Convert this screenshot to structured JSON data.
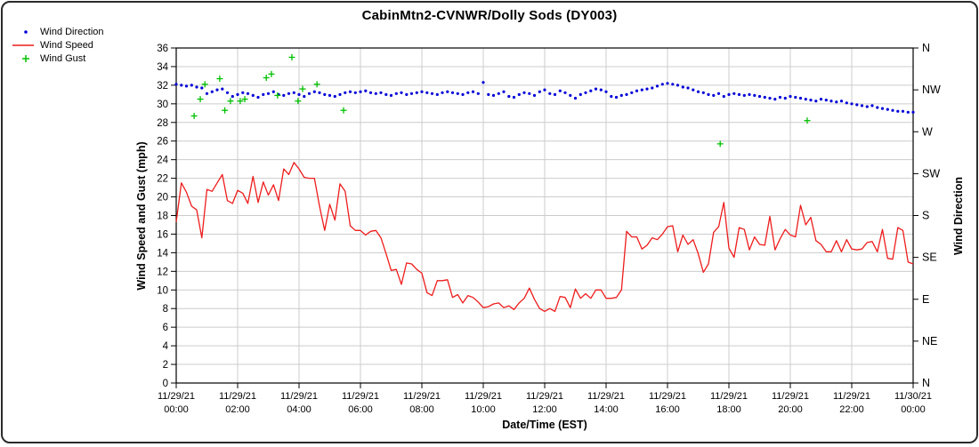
{
  "window": {
    "background": "#ffffff",
    "frame_border_color": "#2a2a2a"
  },
  "chart": {
    "title": "CabinMtn2-CVNWR/Dolly Sods (DY003)",
    "legend": [
      {
        "label": "Wind Direction",
        "marker": "dot",
        "color": "#0000d8"
      },
      {
        "label": "Wind Speed",
        "marker": "line",
        "color": "#ee1c1c"
      },
      {
        "label": "Wind Gust",
        "marker": "plus",
        "color": "#00c000"
      }
    ]
  },
  "chart_data": {
    "type": "line+scatter",
    "title": "CabinMtn2-CVNWR/Dolly Sods (DY003)",
    "xlabel": "Date/Time (EST)",
    "ylabel_left": "Wind Speed and Gust (mph)",
    "ylabel_right": "Wind Direction",
    "grid": true,
    "grid_color": "#cccccc",
    "axis_color": "#000000",
    "ylim_left": [
      0,
      36
    ],
    "y_left_tick_step": 2,
    "x_range_minutes": [
      0,
      1440
    ],
    "x_ticks": [
      {
        "date": "11/29/21",
        "time": "00:00",
        "minutes": 0
      },
      {
        "date": "11/29/21",
        "time": "02:00",
        "minutes": 120
      },
      {
        "date": "11/29/21",
        "time": "04:00",
        "minutes": 240
      },
      {
        "date": "11/29/21",
        "time": "06:00",
        "minutes": 360
      },
      {
        "date": "11/29/21",
        "time": "08:00",
        "minutes": 480
      },
      {
        "date": "11/29/21",
        "time": "10:00",
        "minutes": 600
      },
      {
        "date": "11/29/21",
        "time": "12:00",
        "minutes": 720
      },
      {
        "date": "11/29/21",
        "time": "14:00",
        "minutes": 840
      },
      {
        "date": "11/29/21",
        "time": "16:00",
        "minutes": 960
      },
      {
        "date": "11/29/21",
        "time": "18:00",
        "minutes": 1080
      },
      {
        "date": "11/29/21",
        "time": "20:00",
        "minutes": 1200
      },
      {
        "date": "11/29/21",
        "time": "22:00",
        "minutes": 1320
      },
      {
        "date": "11/30/21",
        "time": "00:00",
        "minutes": 1440
      }
    ],
    "right_axis_ticks": [
      {
        "label": "N",
        "mph": 36
      },
      {
        "label": "NW",
        "mph": 31.5
      },
      {
        "label": "W",
        "mph": 27
      },
      {
        "label": "SW",
        "mph": 22.5
      },
      {
        "label": "S",
        "mph": 18
      },
      {
        "label": "SE",
        "mph": 13.5
      },
      {
        "label": "E",
        "mph": 9
      },
      {
        "label": "NE",
        "mph": 4.5
      },
      {
        "label": "N",
        "mph": 0
      }
    ],
    "right_axis_degrees_per_mph": 10,
    "series": [
      {
        "name": "Wind Speed",
        "type": "line",
        "axis": "left",
        "unit": "mph",
        "color": "#ee1c1c",
        "x_start_minutes": 0,
        "x_step_minutes": 10,
        "values": [
          17.3,
          21.5,
          20.5,
          19.0,
          18.6,
          15.6,
          20.8,
          20.6,
          21.5,
          22.4,
          19.6,
          19.3,
          20.7,
          20.4,
          19.3,
          22.2,
          19.4,
          21.6,
          20.2,
          21.3,
          19.6,
          23.0,
          22.4,
          23.7,
          23.0,
          22.1,
          22.0,
          22.0,
          19.0,
          16.4,
          19.2,
          17.5,
          21.4,
          20.6,
          16.9,
          16.4,
          16.4,
          15.9,
          16.3,
          16.4,
          15.6,
          13.9,
          12.1,
          12.2,
          10.6,
          12.9,
          12.8,
          12.2,
          11.8,
          9.7,
          9.4,
          11.0,
          11.0,
          11.1,
          9.2,
          9.5,
          8.6,
          9.4,
          9.2,
          8.7,
          8.1,
          8.2,
          8.5,
          8.6,
          8.1,
          8.3,
          7.9,
          8.6,
          9.1,
          10.2,
          9.0,
          8.0,
          7.7,
          8.0,
          7.7,
          9.3,
          9.2,
          8.1,
          10.1,
          9.1,
          9.6,
          9.1,
          10.0,
          10.0,
          9.1,
          9.1,
          9.2,
          10.0,
          16.3,
          15.7,
          15.7,
          14.4,
          14.8,
          15.6,
          15.4,
          16.0,
          16.8,
          16.9,
          14.1,
          15.9,
          14.9,
          15.4,
          13.9,
          11.9,
          12.8,
          16.2,
          16.8,
          19.4,
          14.5,
          13.5,
          16.7,
          16.5,
          14.3,
          15.7,
          14.9,
          14.8,
          17.9,
          14.3,
          15.5,
          16.5,
          15.9,
          15.7,
          19.1,
          17.0,
          17.8,
          15.3,
          14.9,
          14.1,
          14.1,
          15.3,
          14.1,
          15.4,
          14.4,
          14.3,
          14.4,
          15.1,
          15.2,
          14.1,
          16.5,
          13.4,
          13.3,
          16.7,
          16.4,
          13.0,
          12.8
        ]
      },
      {
        "name": "Wind Direction",
        "type": "scatter",
        "marker": "dot",
        "axis": "right",
        "unit": "degrees",
        "color": "#0000d8",
        "x_start_minutes": 0,
        "x_step_minutes": 10,
        "values": [
          321,
          320,
          319,
          320,
          318,
          317,
          311,
          313,
          315,
          316,
          312,
          308,
          310,
          312,
          311,
          309,
          307,
          310,
          311,
          313,
          310,
          309,
          311,
          312,
          310,
          308,
          311,
          313,
          312,
          310,
          309,
          308,
          310,
          312,
          313,
          312,
          313,
          314,
          312,
          311,
          312,
          310,
          309,
          311,
          312,
          310,
          311,
          312,
          313,
          312,
          311,
          310,
          312,
          313,
          312,
          311,
          310,
          312,
          313,
          311,
          323,
          310,
          309,
          311,
          313,
          308,
          307,
          310,
          312,
          311,
          309,
          313,
          315,
          311,
          310,
          314,
          312,
          309,
          306,
          310,
          312,
          314,
          316,
          315,
          313,
          308,
          307,
          309,
          310,
          312,
          314,
          315,
          316,
          317,
          319,
          321,
          322,
          321,
          320,
          318,
          317,
          315,
          313,
          312,
          310,
          309,
          311,
          308,
          310,
          311,
          310,
          309,
          310,
          309,
          308,
          307,
          306,
          305,
          307,
          306,
          308,
          307,
          306,
          305,
          304,
          303,
          305,
          304,
          303,
          302,
          303,
          301,
          300,
          299,
          298,
          297,
          298,
          296,
          295,
          294,
          293,
          292,
          292,
          291,
          291
        ]
      },
      {
        "name": "Wind Gust",
        "type": "scatter",
        "marker": "plus",
        "axis": "left",
        "unit": "mph",
        "color": "#00c000",
        "points": [
          [
            35,
            28.7
          ],
          [
            47,
            30.5
          ],
          [
            56,
            32.1
          ],
          [
            85,
            32.7
          ],
          [
            95,
            29.3
          ],
          [
            106,
            30.3
          ],
          [
            125,
            30.3
          ],
          [
            134,
            30.5
          ],
          [
            176,
            32.8
          ],
          [
            186,
            33.2
          ],
          [
            198,
            30.9
          ],
          [
            226,
            35.0
          ],
          [
            238,
            30.3
          ],
          [
            247,
            31.6
          ],
          [
            275,
            32.1
          ],
          [
            327,
            29.3
          ],
          [
            1063,
            25.7
          ],
          [
            1233,
            28.2
          ]
        ]
      }
    ]
  }
}
